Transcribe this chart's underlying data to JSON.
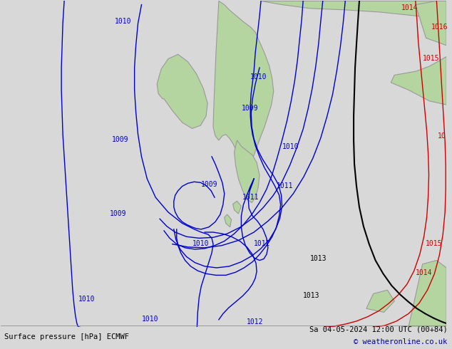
{
  "title_left": "Surface pressure [hPa] ECMWF",
  "title_right": "Sa 04-05-2024 12:00 UTC (00+84)",
  "copyright": "© weatheronline.co.uk",
  "bg_color": "#d8d8d8",
  "land_color": "#b5d5a0",
  "sea_color": "#d8d8d8",
  "figsize": [
    6.34,
    4.9
  ],
  "dpi": 100,
  "bottom_bar_color": "#e8e8e8",
  "blue_isobar_color": "#0000cc",
  "black_isobar_color": "#000000",
  "red_isobar_color": "#cc0000",
  "gray_coast_color": "#999999",
  "label_fontsize": 7,
  "footer_fontsize": 7.5
}
